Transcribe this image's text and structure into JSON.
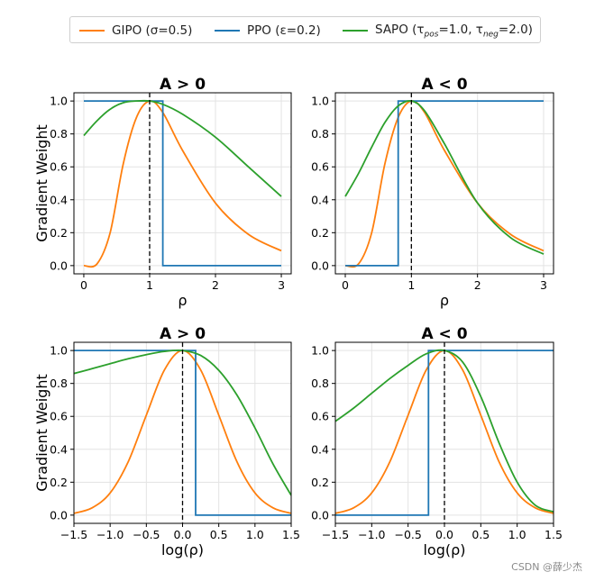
{
  "legend": {
    "gipo": "GIPO (σ=0.5)",
    "ppo": "PPO (ε=0.2)",
    "sapo_prefix": "SAPO (τ",
    "sapo_sub1": "pos",
    "sapo_mid": "=1.0, τ",
    "sapo_sub2": "neg",
    "sapo_suffix": "=2.0)"
  },
  "colors": {
    "gipo": "#ff7f0e",
    "ppo": "#1f77b4",
    "sapo": "#2ca02c"
  },
  "watermark": "CSDN @薛少杰",
  "chart_data": [
    {
      "type": "line",
      "title": "A > 0",
      "xlabel": "ρ",
      "ylabel": "Gradient Weight",
      "xlim": [
        -0.15,
        3.15
      ],
      "ylim": [
        -0.05,
        1.05
      ],
      "xticks": [
        "0",
        "1",
        "2",
        "3"
      ],
      "yticks": [
        "0.0",
        "0.2",
        "0.4",
        "0.6",
        "0.8",
        "1.0"
      ],
      "grid": true,
      "vline": 1,
      "x": [
        0,
        0.2,
        0.4,
        0.6,
        0.8,
        1.0,
        1.2,
        1.5,
        2.0,
        2.5,
        3.0
      ],
      "series": [
        {
          "name": "GIPO (σ=0.5)",
          "values": [
            0.0,
            0.01,
            0.2,
            0.62,
            0.9,
            1.0,
            0.93,
            0.7,
            0.38,
            0.19,
            0.09
          ]
        },
        {
          "name": "PPO (ε=0.2)",
          "x": [
            0,
            1.2,
            1.2,
            3.0
          ],
          "values": [
            1.0,
            1.0,
            0.0,
            0.0
          ]
        },
        {
          "name": "SAPO (τpos=1.0, τneg=2.0)",
          "values": [
            0.79,
            0.88,
            0.95,
            0.99,
            1.0,
            1.0,
            0.98,
            0.92,
            0.78,
            0.6,
            0.42
          ]
        }
      ]
    },
    {
      "type": "line",
      "title": "A < 0",
      "xlabel": "ρ",
      "ylabel": "",
      "xlim": [
        -0.15,
        3.15
      ],
      "ylim": [
        -0.05,
        1.05
      ],
      "xticks": [
        "0",
        "1",
        "2",
        "3"
      ],
      "yticks": [
        "0.0",
        "0.2",
        "0.4",
        "0.6",
        "0.8",
        "1.0"
      ],
      "grid": true,
      "vline": 1,
      "x": [
        0,
        0.2,
        0.4,
        0.6,
        0.8,
        1.0,
        1.2,
        1.5,
        2.0,
        2.5,
        3.0
      ],
      "series": [
        {
          "name": "GIPO (σ=0.5)",
          "values": [
            0.0,
            0.01,
            0.2,
            0.62,
            0.9,
            1.0,
            0.93,
            0.7,
            0.38,
            0.19,
            0.09
          ]
        },
        {
          "name": "PPO (ε=0.2)",
          "x": [
            0,
            0.8,
            0.8,
            3.0
          ],
          "values": [
            0.0,
            0.0,
            1.0,
            1.0
          ]
        },
        {
          "name": "SAPO (τpos=1.0, τneg=2.0)",
          "values": [
            0.42,
            0.56,
            0.72,
            0.87,
            0.97,
            1.0,
            0.94,
            0.74,
            0.38,
            0.17,
            0.07
          ]
        }
      ]
    },
    {
      "type": "line",
      "title": "A > 0",
      "xlabel": "log(ρ)",
      "ylabel": "Gradient Weight",
      "xlim": [
        -1.5,
        1.5
      ],
      "ylim": [
        -0.05,
        1.05
      ],
      "xticks": [
        "−1.5",
        "−1.0",
        "−0.5",
        "0.0",
        "0.5",
        "1.0",
        "1.5"
      ],
      "yticks": [
        "0.0",
        "0.2",
        "0.4",
        "0.6",
        "0.8",
        "1.0"
      ],
      "grid": true,
      "vline": 0,
      "x": [
        -1.5,
        -1.25,
        -1.0,
        -0.75,
        -0.5,
        -0.25,
        0.0,
        0.25,
        0.5,
        0.75,
        1.0,
        1.25,
        1.5
      ],
      "series": [
        {
          "name": "GIPO (σ=0.5)",
          "values": [
            0.011,
            0.044,
            0.135,
            0.325,
            0.607,
            0.882,
            1.0,
            0.882,
            0.607,
            0.325,
            0.135,
            0.044,
            0.011
          ]
        },
        {
          "name": "PPO (ε=0.2)",
          "x": [
            -1.5,
            0.18,
            0.18,
            1.5
          ],
          "values": [
            1.0,
            1.0,
            0.0,
            0.0
          ]
        },
        {
          "name": "SAPO (τpos=1.0, τneg=2.0)",
          "values": [
            0.86,
            0.89,
            0.92,
            0.95,
            0.975,
            0.995,
            1.0,
            0.97,
            0.88,
            0.73,
            0.53,
            0.31,
            0.12
          ]
        }
      ]
    },
    {
      "type": "line",
      "title": "A < 0",
      "xlabel": "log(ρ)",
      "ylabel": "",
      "xlim": [
        -1.5,
        1.5
      ],
      "ylim": [
        -0.05,
        1.05
      ],
      "xticks": [
        "−1.5",
        "−1.0",
        "−0.5",
        "0.0",
        "0.5",
        "1.0",
        "1.5"
      ],
      "yticks": [
        "0.0",
        "0.2",
        "0.4",
        "0.6",
        "0.8",
        "1.0"
      ],
      "grid": true,
      "vline": 0,
      "x": [
        -1.5,
        -1.25,
        -1.0,
        -0.75,
        -0.5,
        -0.25,
        0.0,
        0.25,
        0.5,
        0.75,
        1.0,
        1.25,
        1.5
      ],
      "series": [
        {
          "name": "GIPO (σ=0.5)",
          "values": [
            0.011,
            0.044,
            0.135,
            0.325,
            0.607,
            0.882,
            1.0,
            0.882,
            0.607,
            0.325,
            0.135,
            0.044,
            0.011
          ]
        },
        {
          "name": "PPO (ε=0.2)",
          "x": [
            -1.5,
            -0.22,
            -0.22,
            1.5
          ],
          "values": [
            0.0,
            0.0,
            1.0,
            1.0
          ]
        },
        {
          "name": "SAPO (τpos=1.0, τneg=2.0)",
          "values": [
            0.57,
            0.65,
            0.74,
            0.83,
            0.91,
            0.98,
            1.0,
            0.93,
            0.72,
            0.44,
            0.2,
            0.06,
            0.02
          ]
        }
      ]
    }
  ]
}
